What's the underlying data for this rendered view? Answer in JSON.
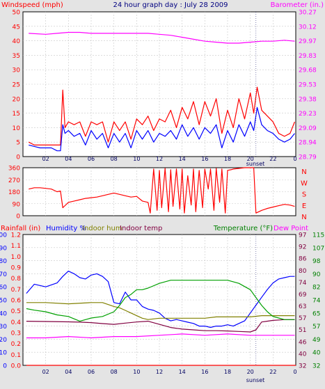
{
  "colors": {
    "background": "#e4e4e4",
    "plot_bg": "#ffffff",
    "grid": "#c8c8c8",
    "red": "#ff0000",
    "blue": "#0000ff",
    "magenta": "#ff00ff",
    "green": "#008000",
    "dark_green": "#00a000",
    "olive": "#808000",
    "maroon": "#800040",
    "title_blue": "#000080",
    "hour_label": "#000060",
    "sunset": "#000060"
  },
  "chart_data": [
    {
      "type": "line",
      "title": "24 hour graph day : July 28 2009",
      "left_label": "Windspeed (mph)",
      "right_label": "Barometer (in.)",
      "x_ticks": [
        "02",
        "04",
        "06",
        "08",
        "10",
        "12",
        "14",
        "16",
        "18",
        "20",
        "22",
        "0"
      ],
      "sunset_label": "sunset",
      "sunset_hour": 20.5,
      "y_left_ticks": [
        "0",
        "5",
        "10",
        "15",
        "20",
        "25",
        "30",
        "35",
        "40",
        "45",
        "50"
      ],
      "y_right_ticks": [
        "28.79",
        "28.94",
        "29.09",
        "29.23",
        "29.38",
        "29.53",
        "29.68",
        "29.83",
        "29.97",
        "30.12",
        "30.27"
      ],
      "ylim_left": [
        0,
        50
      ],
      "ylim_right": [
        28.79,
        30.27
      ],
      "series": [
        {
          "role": "barometer",
          "color": "magenta",
          "axis": "right",
          "x": [
            0.5,
            2,
            3,
            4,
            5,
            6,
            7,
            8,
            9,
            10,
            11,
            12,
            13,
            14,
            15,
            16,
            17,
            18,
            19,
            20,
            21,
            22,
            23,
            23.9
          ],
          "y": [
            30.05,
            30.04,
            30.05,
            30.06,
            30.06,
            30.05,
            30.05,
            30.05,
            30.05,
            30.05,
            30.05,
            30.04,
            30.03,
            30.01,
            29.99,
            29.97,
            29.96,
            29.95,
            29.95,
            29.96,
            29.97,
            29.97,
            29.98,
            29.97
          ]
        },
        {
          "role": "wind gust",
          "color": "red",
          "axis": "left",
          "x": [
            0.5,
            1,
            1.5,
            2,
            2.5,
            3,
            3.3,
            3.5,
            3.7,
            4,
            4.5,
            5,
            5.5,
            6,
            6.5,
            7,
            7.5,
            8,
            8.5,
            9,
            9.5,
            10,
            10.5,
            11,
            11.5,
            12,
            12.5,
            13,
            13.5,
            14,
            14.5,
            15,
            15.5,
            16,
            16.5,
            17,
            17.5,
            18,
            18.5,
            19,
            19.5,
            20,
            20.3,
            20.6,
            21,
            21.5,
            22,
            22.5,
            23,
            23.5,
            23.9
          ],
          "y": [
            5,
            4,
            4,
            4,
            4,
            4,
            4,
            23,
            10,
            12,
            11,
            12,
            7,
            12,
            11,
            12,
            5,
            12,
            9,
            12,
            6,
            13,
            11,
            14,
            9,
            13,
            12,
            16,
            10,
            17,
            13,
            19,
            11,
            19,
            14,
            20,
            8,
            16,
            10,
            20,
            13,
            22,
            15,
            24,
            16,
            14,
            12,
            8,
            7,
            8,
            12
          ]
        },
        {
          "role": "wind speed",
          "color": "blue",
          "axis": "left",
          "x": [
            0.5,
            1,
            1.5,
            2,
            2.5,
            3,
            3.3,
            3.5,
            3.7,
            4,
            4.5,
            5,
            5.5,
            6,
            6.5,
            7,
            7.5,
            8,
            8.5,
            9,
            9.5,
            10,
            10.5,
            11,
            11.5,
            12,
            12.5,
            13,
            13.5,
            14,
            14.5,
            15,
            15.5,
            16,
            16.5,
            17,
            17.5,
            18,
            18.5,
            19,
            19.5,
            20,
            20.3,
            20.6,
            21,
            21.5,
            22,
            22.5,
            23,
            23.5,
            23.9
          ],
          "y": [
            4,
            3.5,
            3,
            3,
            3,
            2,
            2,
            11,
            8,
            9,
            7,
            8,
            4,
            9,
            6,
            8,
            3,
            8,
            5,
            8,
            3,
            9,
            6,
            9,
            5,
            8,
            7,
            9,
            6,
            11,
            7,
            10,
            6,
            10,
            8,
            11,
            3,
            9,
            5,
            11,
            7,
            12,
            9,
            17,
            11,
            9,
            8,
            6,
            5,
            6,
            8
          ]
        }
      ]
    },
    {
      "type": "line",
      "right_label": "N\nW\nS\nE\nN",
      "x_ticks": [
        "02",
        "04",
        "06",
        "08",
        "10",
        "12",
        "14",
        "16",
        "18",
        "20",
        "22",
        "0"
      ],
      "y_ticks": [
        "0",
        "90",
        "180",
        "270",
        "360"
      ],
      "ylim": [
        0,
        360
      ],
      "series": [
        {
          "role": "wind direction",
          "color": "red",
          "x": [
            0.5,
            1,
            1.5,
            2,
            2.5,
            3,
            3.3,
            3.5,
            4,
            4.5,
            5,
            5.5,
            6,
            6.5,
            7,
            7.5,
            8,
            8.5,
            9,
            9.5,
            10,
            10.5,
            11,
            11.2,
            11.5,
            11.8,
            12,
            12.2,
            12.5,
            12.8,
            13,
            13.2,
            13.5,
            13.8,
            14,
            14.2,
            14.5,
            14.8,
            15,
            15.2,
            15.5,
            15.8,
            16,
            16.3,
            16.5,
            16.8,
            17,
            17.3,
            17.5,
            17.8,
            18,
            18.3,
            18.5,
            19,
            19.5,
            20,
            20.3,
            20.5,
            21,
            21.5,
            22,
            22.5,
            23,
            23.5,
            23.9
          ],
          "y": [
            200,
            210,
            210,
            205,
            200,
            180,
            185,
            60,
            100,
            110,
            120,
            130,
            135,
            140,
            150,
            160,
            170,
            160,
            150,
            140,
            145,
            110,
            100,
            20,
            350,
            40,
            340,
            60,
            355,
            30,
            345,
            70,
            350,
            50,
            350,
            20,
            300,
            80,
            350,
            30,
            340,
            60,
            350,
            200,
            350,
            40,
            355,
            100,
            350,
            20,
            340,
            345,
            350,
            355,
            360,
            365,
            365,
            20,
            40,
            55,
            65,
            75,
            85,
            80,
            70
          ]
        }
      ]
    },
    {
      "type": "line",
      "labels": {
        "rain": "Rainfall (in)",
        "humidity": "Humidity %",
        "indoor_hum": "Indoor hum",
        "indoor_temp": "Indoor temp",
        "temperature": "Temperature (°F)",
        "dew_point": "Dew Point"
      },
      "x_ticks": [
        "02",
        "04",
        "06",
        "08",
        "10",
        "12",
        "14",
        "16",
        "18",
        "20",
        "22",
        "0"
      ],
      "sunset_label": "sunset",
      "sunset_hour": 20.5,
      "axis_rain_ticks": [
        "0.0",
        "0.1",
        "0.2",
        "0.3",
        "0.4",
        "0.5",
        "0.6",
        "0.7",
        "0.8",
        "0.9",
        "1.0",
        "1.1",
        "1.2"
      ],
      "axis_humidity_ticks": [
        "0",
        "10",
        "20",
        "30",
        "40",
        "50",
        "60",
        "70",
        "80",
        "90",
        "100"
      ],
      "axis_temp_ticks": [
        "32",
        "40",
        "49",
        "57",
        "65",
        "74",
        "82",
        "90",
        "98",
        "107",
        "115"
      ],
      "axis_temp_inner_ticks": [
        "32",
        "40",
        "46",
        "51",
        "57",
        "63",
        "69",
        "74",
        "80",
        "86",
        "92",
        "97"
      ],
      "ylim_percent": [
        0,
        100
      ],
      "ylim_temp": [
        32,
        115
      ],
      "series": [
        {
          "role": "rainfall",
          "color": "red",
          "x": [
            0.3,
            24
          ],
          "y": [
            0,
            0
          ]
        },
        {
          "role": "humidity",
          "color": "blue",
          "x": [
            0.3,
            1,
            2,
            3,
            3.5,
            4,
            4.5,
            5,
            5.5,
            6,
            6.5,
            7,
            7.5,
            8,
            8.5,
            9,
            9.5,
            10,
            10.5,
            11,
            11.5,
            12,
            12.5,
            13,
            13.5,
            14,
            14.5,
            15,
            15.5,
            16,
            16.5,
            17,
            17.5,
            18,
            18.5,
            19,
            19.5,
            20,
            20.5,
            21,
            21.5,
            22,
            22.5,
            23,
            23.5,
            23.9
          ],
          "y": [
            55,
            62,
            60,
            63,
            68,
            72,
            70,
            67,
            66,
            69,
            70,
            68,
            64,
            48,
            47,
            56,
            50,
            50,
            45,
            43,
            42,
            40,
            36,
            34,
            35,
            34,
            33,
            32,
            30,
            30,
            29,
            30,
            30,
            31,
            30,
            32,
            34,
            40,
            46,
            52,
            58,
            63,
            66,
            67,
            68,
            68
          ]
        },
        {
          "role": "indoor humidity",
          "color": "olive",
          "x": [
            0.3,
            2,
            4,
            6,
            7,
            8,
            8.5,
            9,
            9.5,
            10,
            10.5,
            11,
            12,
            13,
            14,
            15,
            16,
            17,
            18,
            19,
            20,
            21,
            22,
            23,
            23.9
          ],
          "y": [
            48,
            48,
            47,
            48,
            48,
            45,
            44,
            42,
            40,
            38,
            36,
            35,
            36,
            36,
            36,
            36,
            36,
            37,
            37,
            37,
            37,
            38,
            38,
            38,
            38
          ]
        },
        {
          "role": "indoor temp",
          "color": "maroon",
          "x": [
            0.3,
            2,
            4,
            5,
            6,
            7,
            8,
            9,
            10,
            11,
            12,
            13,
            14,
            15,
            16,
            17,
            18,
            19,
            20,
            20.5,
            21,
            22,
            23,
            23.9
          ],
          "y": [
            60,
            59.8,
            59.6,
            59.4,
            59.1,
            58.5,
            58,
            58.8,
            59.5,
            60,
            58,
            56,
            55,
            54.5,
            54,
            54,
            53.8,
            53.5,
            53.2,
            54.5,
            59.5,
            60.5,
            61,
            61
          ]
        },
        {
          "role": "temperature",
          "color": "dark_green",
          "x": [
            0.3,
            1,
            2,
            3,
            4,
            5,
            5.5,
            6,
            7,
            8,
            8.5,
            9,
            9.5,
            10,
            10.5,
            11,
            12,
            13,
            14,
            15,
            16,
            17,
            18,
            19,
            20,
            20.5,
            21,
            21.5,
            22,
            22.5,
            23,
            23.5,
            23.9
          ],
          "y": [
            68,
            67,
            66,
            64,
            63,
            60,
            61,
            62,
            63,
            66,
            70,
            75,
            77,
            80,
            80,
            81,
            84,
            86,
            86,
            86,
            86,
            86,
            86,
            84,
            80,
            75,
            70,
            66,
            63,
            62,
            61,
            61,
            61
          ]
        },
        {
          "role": "dew point",
          "color": "magenta",
          "x": [
            0.3,
            2,
            4,
            6,
            8,
            10,
            12,
            14,
            16,
            18,
            20,
            22,
            23.9
          ],
          "y": [
            21,
            21,
            22,
            21,
            22,
            22,
            23,
            24,
            23,
            24,
            23,
            23,
            23
          ]
        }
      ]
    }
  ]
}
